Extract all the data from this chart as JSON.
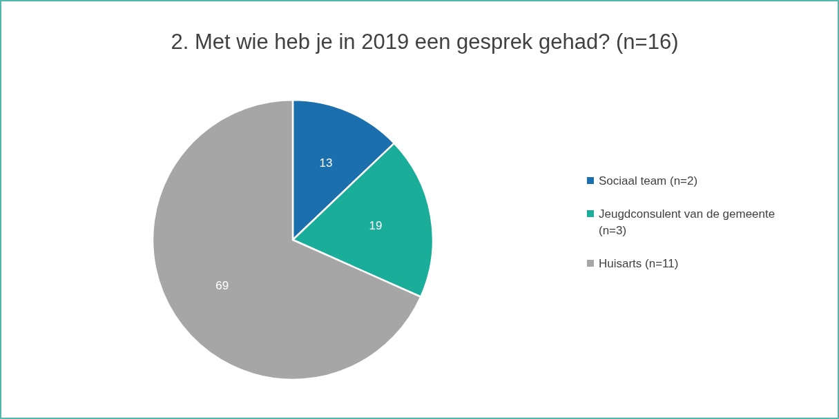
{
  "chart_data": {
    "type": "pie",
    "title": "2. Met wie heb je in 2019 een gesprek gehad? (n=16)",
    "categories": [
      "Sociaal team (n=2)",
      "Jeugdconsulent van de gemeente (n=3)",
      "Huisarts (n=11)"
    ],
    "values": [
      13,
      19,
      69
    ],
    "colors": [
      "#1b6fad",
      "#1aae9a",
      "#a6a6a6"
    ],
    "data_labels": true,
    "legend": "right"
  }
}
